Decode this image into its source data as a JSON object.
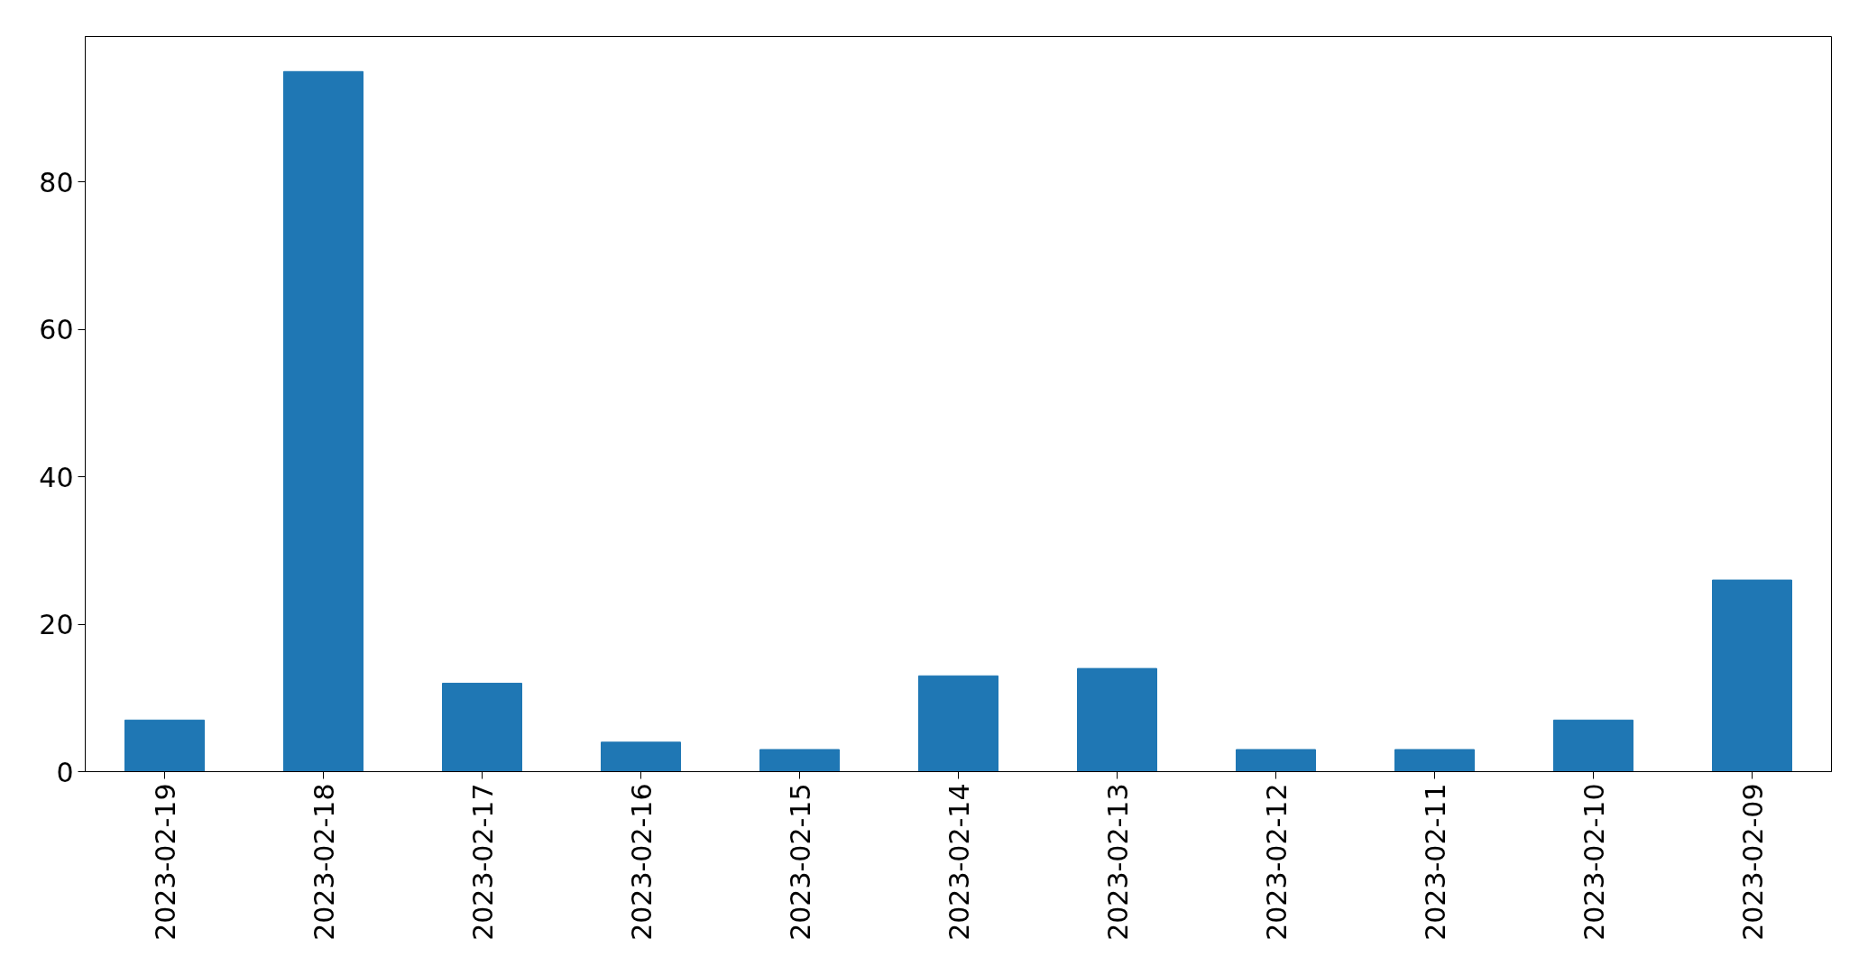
{
  "chart_data": {
    "type": "bar",
    "categories": [
      "2023-02-19",
      "2023-02-18",
      "2023-02-17",
      "2023-02-16",
      "2023-02-15",
      "2023-02-14",
      "2023-02-13",
      "2023-02-12",
      "2023-02-11",
      "2023-02-10",
      "2023-02-09"
    ],
    "values": [
      7,
      95,
      12,
      4,
      3,
      13,
      14,
      3,
      3,
      7,
      26
    ],
    "color": "#1f77b4",
    "ylim": [
      0,
      99.75
    ],
    "yticks": [
      0,
      20,
      40,
      60,
      80
    ],
    "grid": false
  }
}
